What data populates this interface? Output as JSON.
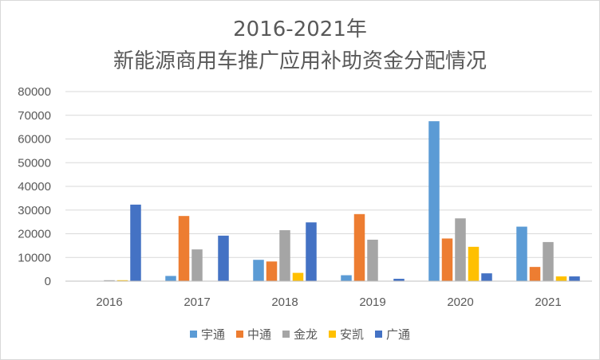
{
  "chart_data": {
    "type": "bar",
    "title": [
      "2016-2021年",
      "新能源商用车推广应用补助资金分配情况"
    ],
    "categories": [
      "2016",
      "2017",
      "2018",
      "2019",
      "2020",
      "2021"
    ],
    "ylim": [
      0,
      80000
    ],
    "yticks": [
      "0",
      "10000",
      "20000",
      "30000",
      "40000",
      "50000",
      "60000",
      "70000",
      "80000"
    ],
    "grid": true,
    "legend": "bottom",
    "series": [
      {
        "name": "宇通",
        "color": "#5b9bd5",
        "values": [
          0,
          2200,
          9000,
          2500,
          67500,
          23000
        ]
      },
      {
        "name": "中通",
        "color": "#ed7d31",
        "values": [
          0,
          27500,
          8300,
          28300,
          18000,
          6000
        ]
      },
      {
        "name": "金龙",
        "color": "#a5a5a5",
        "values": [
          400,
          13400,
          21500,
          17500,
          26500,
          16500
        ]
      },
      {
        "name": "安凯",
        "color": "#ffc000",
        "values": [
          400,
          0,
          3500,
          0,
          14500,
          2000
        ]
      },
      {
        "name": "广通",
        "color": "#4472c4",
        "values": [
          32300,
          19200,
          24800,
          1000,
          3300,
          2000
        ]
      }
    ]
  }
}
